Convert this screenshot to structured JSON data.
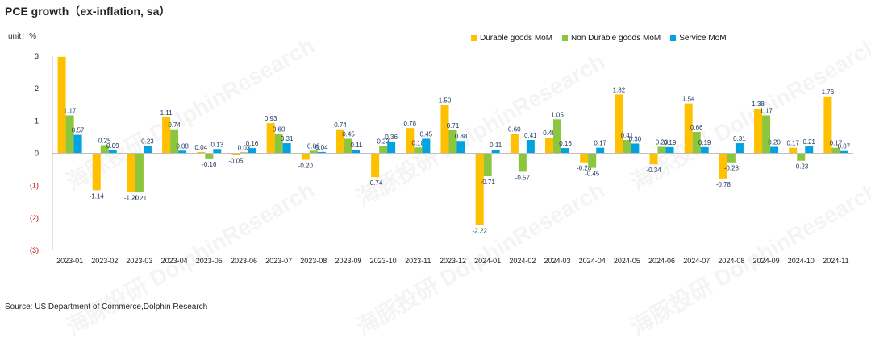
{
  "title": "PCE growth（ex-inflation, sa）",
  "unit_label": "unit：%",
  "source": "Source: US Department of Commerce,Dolphin Research",
  "watermark": "海豚投研 DolphinResearch",
  "colors": {
    "durable": "#FFC000",
    "nondurable": "#8CC63F",
    "service": "#00A3E0",
    "neg_tick": "#C00000"
  },
  "chart_data": {
    "type": "bar",
    "title": "PCE growth（ex-inflation, sa）",
    "ylabel": "unit：%",
    "xlabel": "",
    "ylim": [
      -3,
      3
    ],
    "yticks": [
      3,
      2,
      1,
      0,
      -1,
      -2,
      -3
    ],
    "ytick_labels": [
      "3",
      "2",
      "1",
      "0",
      "(1)",
      "(2)",
      "(3)"
    ],
    "legend_position": "top-right",
    "grid": false,
    "categories": [
      "2023-01",
      "2023-02",
      "2023-03",
      "2023-04",
      "2023-05",
      "2023-06",
      "2023-07",
      "2023-08",
      "2023-09",
      "2023-10",
      "2023-11",
      "2023-12",
      "2024-01",
      "2024-02",
      "2024-03",
      "2024-04",
      "2024-05",
      "2024-06",
      "2024-07",
      "2024-08",
      "2024-09",
      "2024-10",
      "2024-11"
    ],
    "series": [
      {
        "name": "Durable goods MoM",
        "key": "durable",
        "values": [
          2.98,
          -1.14,
          -1.2,
          1.11,
          0.04,
          -0.05,
          0.93,
          -0.2,
          0.74,
          -0.74,
          0.78,
          1.5,
          -2.22,
          0.6,
          0.48,
          -0.28,
          1.82,
          -0.34,
          1.54,
          -0.78,
          1.38,
          0.17,
          1.76
        ],
        "labels": [
          "",
          "-1.14",
          "-1.20",
          "1.11",
          "0.04",
          "-0.05",
          "0.93",
          "-0.20",
          "0.74",
          "-0.74",
          "0.78",
          "1.50",
          "-2.22",
          "0.60",
          "0.48",
          "-0.28",
          "1.82",
          "-0.34",
          "1.54",
          "-0.78",
          "1.38",
          "0.17",
          "1.76"
        ]
      },
      {
        "name": "Non Durable goods MoM",
        "key": "nondurable",
        "values": [
          1.17,
          0.25,
          -1.21,
          0.74,
          -0.16,
          0.03,
          0.6,
          0.08,
          0.45,
          0.23,
          0.18,
          0.71,
          -0.71,
          -0.57,
          1.05,
          -0.45,
          0.41,
          0.2,
          0.66,
          -0.28,
          1.17,
          -0.23,
          0.17
        ],
        "labels": [
          "1.17",
          "0.25",
          "-1.21",
          "0.74",
          "-0.16",
          "0.03",
          "0.60",
          "0.08",
          "0.45",
          "0.23",
          "0.18",
          "0.71",
          "-0.71",
          "-0.57",
          "1.05",
          "-0.45",
          "0.41",
          "0.20",
          "0.66",
          "-0.28",
          "1.17",
          "-0.23",
          "0.17"
        ]
      },
      {
        "name": "Service MoM",
        "key": "service",
        "values": [
          0.57,
          0.09,
          0.23,
          0.08,
          0.13,
          0.16,
          0.31,
          0.04,
          0.11,
          0.36,
          0.45,
          0.38,
          0.11,
          0.41,
          0.16,
          0.17,
          0.3,
          0.19,
          0.19,
          0.31,
          0.2,
          0.21,
          0.07
        ],
        "labels": [
          "0.57",
          "0.09",
          "0.23",
          "0.08",
          "0.13",
          "0.16",
          "0.31",
          "0.04",
          "0.11",
          "0.36",
          "0.45",
          "0.38",
          "0.11",
          "0.41",
          "0.16",
          "0.17",
          "0.30",
          "0.19",
          "0.19",
          "0.31",
          "0.20",
          "0.21",
          "0.07"
        ]
      }
    ]
  }
}
